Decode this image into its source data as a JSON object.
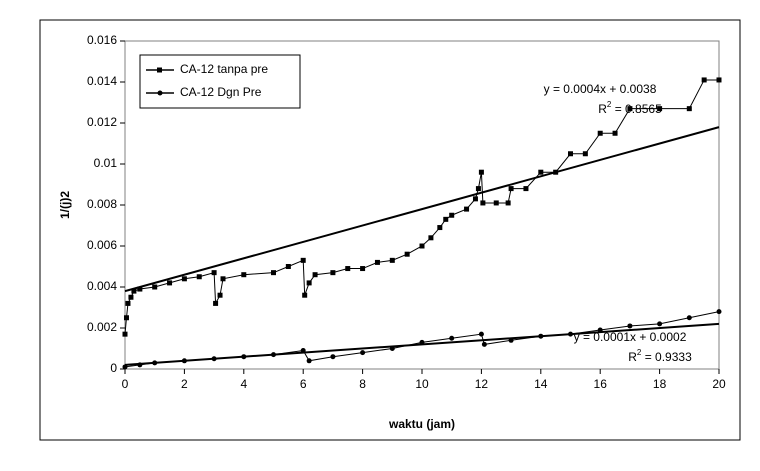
{
  "chart_data": {
    "type": "line",
    "ylabel": "1/(j)2",
    "xlabel": "waktu (jam)",
    "xlim": [
      0,
      20
    ],
    "xticks": [
      0,
      2,
      4,
      6,
      8,
      10,
      12,
      14,
      16,
      18,
      20
    ],
    "ylim": [
      0,
      0.016
    ],
    "yticks": [
      0,
      0.002,
      0.004,
      0.006,
      0.008,
      0.01,
      0.012,
      0.014,
      0.016
    ],
    "legend": "top-left",
    "series": [
      {
        "name": "CA-12 tanpa pre",
        "color": "#000000",
        "marker": "square",
        "x": [
          0,
          0.05,
          0.1,
          0.2,
          0.3,
          0.5,
          1,
          1.5,
          2,
          2.5,
          3,
          3.05,
          3.2,
          3.3,
          4,
          5,
          5.5,
          6,
          6.05,
          6.2,
          6.4,
          7,
          7.5,
          8,
          8.5,
          9,
          9.5,
          10,
          10.3,
          10.6,
          10.8,
          11,
          11.5,
          11.8,
          11.9,
          12,
          12.05,
          12.5,
          12.9,
          13,
          13.5,
          14,
          14.5,
          15,
          15.5,
          16,
          16.5,
          17,
          18,
          19,
          19.5,
          20
        ],
        "values": [
          0.0017,
          0.0025,
          0.0032,
          0.0035,
          0.0038,
          0.0039,
          0.004,
          0.0042,
          0.0044,
          0.0045,
          0.0047,
          0.0032,
          0.0036,
          0.0044,
          0.0046,
          0.0047,
          0.005,
          0.0053,
          0.0036,
          0.0042,
          0.0046,
          0.0047,
          0.0049,
          0.0049,
          0.0052,
          0.0053,
          0.0056,
          0.006,
          0.0064,
          0.0069,
          0.0073,
          0.0075,
          0.0078,
          0.0083,
          0.0088,
          0.0096,
          0.0081,
          0.0081,
          0.0081,
          0.0088,
          0.0088,
          0.0096,
          0.0096,
          0.0105,
          0.0105,
          0.0115,
          0.0115,
          0.0127,
          0.0127,
          0.0127,
          0.0141,
          0.0141
        ],
        "trendline": {
          "slope": 0.0004,
          "intercept": 0.0038,
          "label": "y = 0.0004x + 0.0038",
          "r2": {
            "base": "R",
            "sup": "2",
            "rest": " = 0.8565"
          }
        }
      },
      {
        "name": "CA-12 Dgn Pre",
        "color": "#000000",
        "marker": "circle",
        "x": [
          0,
          0.5,
          1,
          2,
          3,
          4,
          5,
          6,
          6.2,
          7,
          8,
          9,
          10,
          11,
          12,
          12.1,
          13,
          14,
          15,
          16,
          17,
          18,
          19,
          20
        ],
        "values": [
          0.0001,
          0.0002,
          0.0003,
          0.0004,
          0.0005,
          0.0006,
          0.0007,
          0.0009,
          0.0004,
          0.0006,
          0.0008,
          0.001,
          0.0013,
          0.0015,
          0.0017,
          0.0012,
          0.0014,
          0.0016,
          0.0017,
          0.0019,
          0.0021,
          0.0022,
          0.0025,
          0.0028
        ],
        "trendline": {
          "slope": 0.0001,
          "intercept": 0.0002,
          "label": "y = 0.0001x + 0.0002",
          "r2": {
            "base": "R",
            "sup": "2",
            "rest": " = 0.9333"
          }
        }
      }
    ]
  }
}
